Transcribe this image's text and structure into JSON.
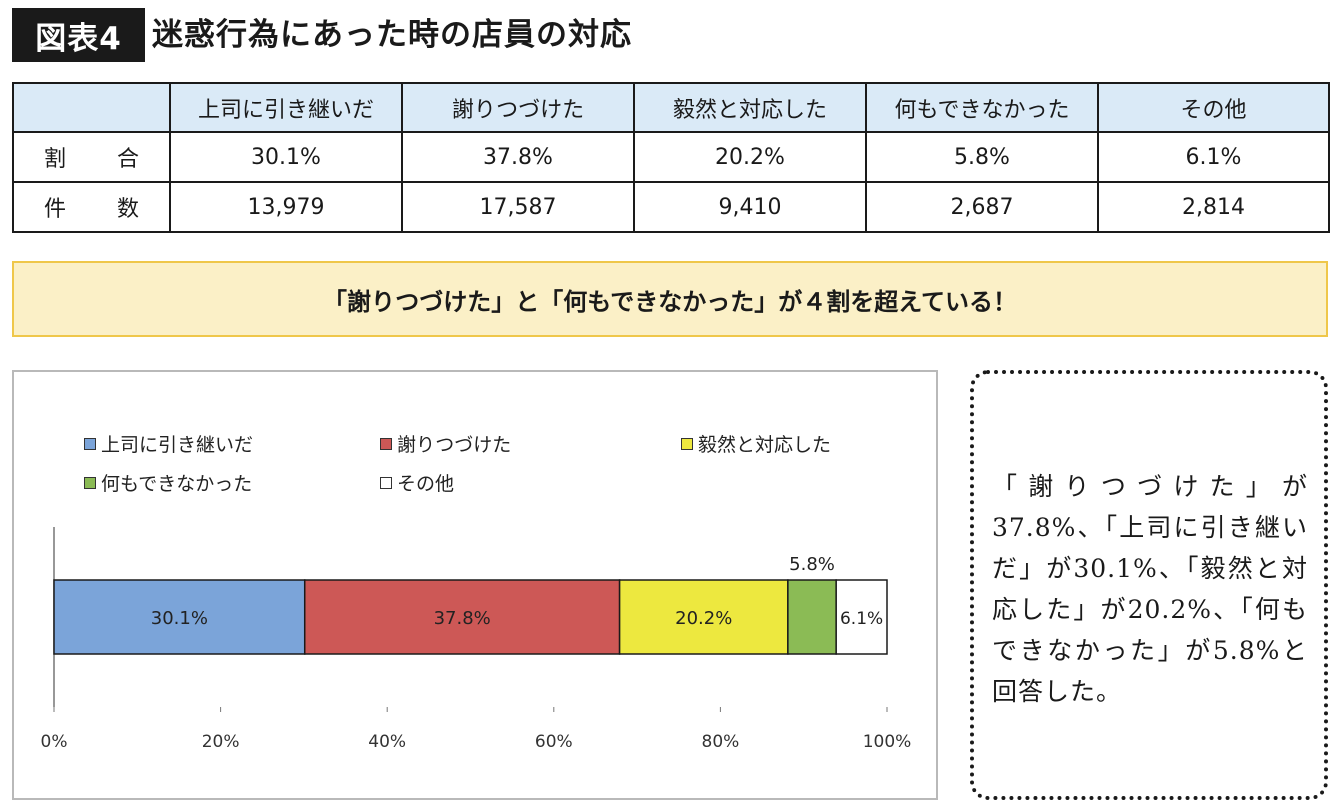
{
  "header": {
    "badge": "図表4",
    "title": "迷惑行為にあった時の店員の対応"
  },
  "table": {
    "columns": [
      "",
      "上司に引き継いだ",
      "謝りつづけた",
      "毅然と対応した",
      "何もできなかった",
      "その他"
    ],
    "rows": [
      {
        "label": "割 合",
        "cells": [
          "30.1%",
          "37.8%",
          "20.2%",
          "5.8%",
          "6.1%"
        ]
      },
      {
        "label": "件 数",
        "cells": [
          "13,979",
          "17,587",
          "9,410",
          "2,687",
          "2,814"
        ]
      }
    ]
  },
  "banner": {
    "text": "「謝りつづけた」と「何もできなかった」が４割を超えている！"
  },
  "chart_data": {
    "type": "bar",
    "orientation": "horizontal-stacked-100",
    "series": [
      {
        "name": "上司に引き継いだ",
        "value": 30.1,
        "label": "30.1%",
        "color": "#7ba4d9"
      },
      {
        "name": "謝りつづけた",
        "value": 37.8,
        "label": "37.8%",
        "color": "#cd5856"
      },
      {
        "name": "毅然と対応した",
        "value": 20.2,
        "label": "20.2%",
        "color": "#ede83f"
      },
      {
        "name": "何もできなかった",
        "value": 5.8,
        "label": "5.8%",
        "color": "#8bbb55"
      },
      {
        "name": "その他",
        "value": 6.1,
        "label": "6.1%",
        "color": "#ffffff"
      }
    ],
    "xlim": [
      0,
      100
    ],
    "xticks": [
      "0%",
      "20%",
      "40%",
      "60%",
      "80%",
      "100%"
    ],
    "grid": false,
    "legend_position": "top"
  },
  "note": {
    "text": "「謝りつづけた」が37.8%、「上司に引き継いだ」が30.1%、「毅然と対応した」が20.2%、「何もできなかった」が5.8%と回答した。"
  }
}
